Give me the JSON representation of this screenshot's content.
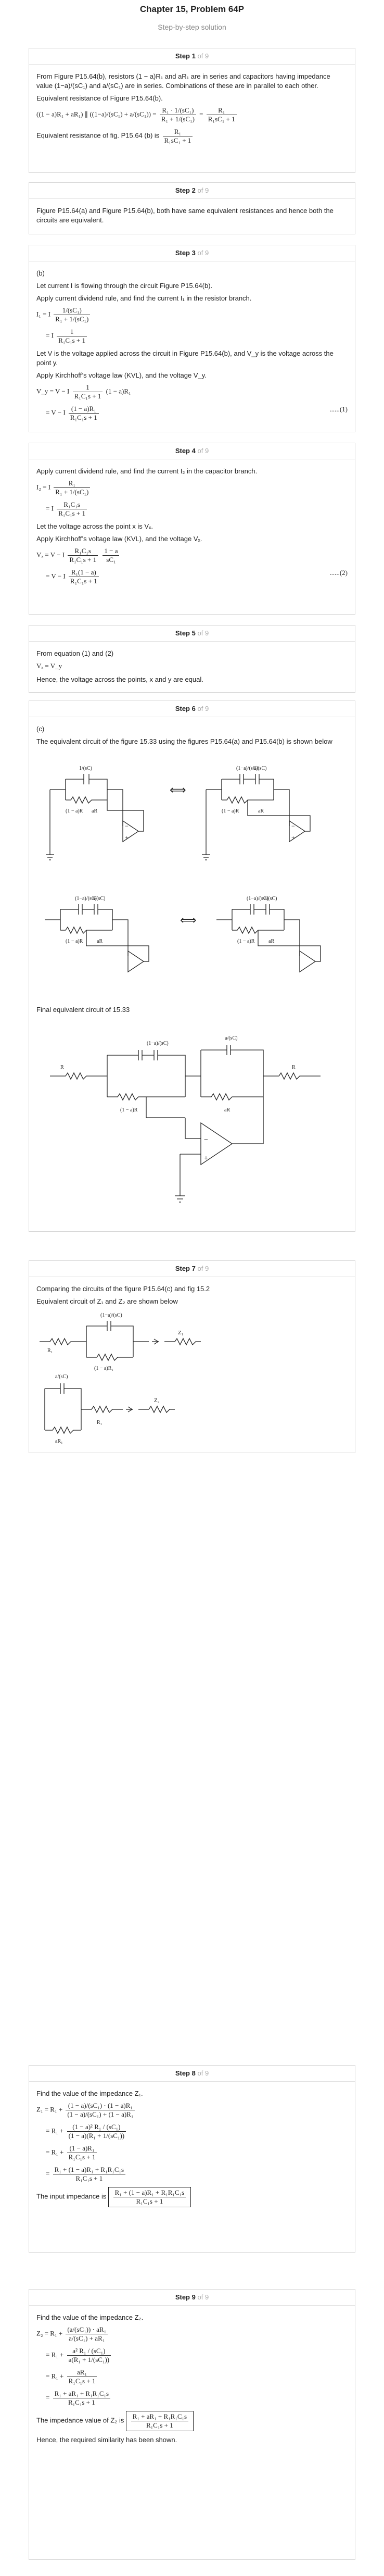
{
  "header": {
    "title": "Chapter 15, Problem 64P",
    "subtitle": "Step-by-step solution"
  },
  "step_word": "Step",
  "of_word": "of 9",
  "steps": [
    {
      "number": "1",
      "text1": "From Figure  P15.64(b),  resistors  (1 − a)R₁  and  aR₁  are in series and capacitors having impedance value  (1−a)/(sC₁)  and  a/(sC₁)  are in series. Combinations of these are in parallel to each other.",
      "text2": "Equivalent resistance of Figure  P15.64(b).",
      "eq1a": "((1 − a)R₁ + aR₁) ∥ ((1−a)/(sC₁) + a/(sC₁)) =",
      "eq1b": "R₁ · 1/(sC₁)",
      "eq1c": "R₁ + 1/(sC₁)",
      "eq1d": "R₁",
      "eq1e": "R₁sC₁ + 1",
      "text3": "Equivalent resistance of fig. P15.64 (b) is",
      "result_n": "R₁",
      "result_d": "R₁sC₁ + 1"
    },
    {
      "number": "2",
      "text1": "Figure  P15.64(a) and Figure  P15.64(b),  both have same equivalent resistances and hence both the circuits are equivalent."
    },
    {
      "number": "3",
      "part": "(b)",
      "text1": "Let current  I  is flowing through the circuit Figure  P15.64(b).",
      "text2": "Apply current dividend rule, and find the current  I₁  in the resistor branch.",
      "eq1": "I₁ = I",
      "eq1n": "1/(sC₁)",
      "eq1d": "R₁ + 1/(sC₁)",
      "eq2": "= I",
      "eq2n": "1",
      "eq2d": "R₁C₁s + 1",
      "text3": "Let  V  is the voltage applied across the circuit in Figure  P15.64(b),  and  V_y  is the voltage across the point  y.",
      "text4": "Apply Kirchhoff’s voltage law (KVL), and the voltage  V_y.",
      "eq3a": "V_y = V − I",
      "eq3n": "1",
      "eq3d": "R₁C₁s + 1",
      "eq3b": "(1 − a)R₁",
      "eq4a": "= V − I",
      "eq4n": "(1 − a)R₁",
      "eq4d": "R₁C₁s + 1",
      "eqnum": "......(1)"
    },
    {
      "number": "4",
      "text1": "Apply current dividend rule, and find the current  I₂  in the capacitor branch.",
      "eq1": "I₂ = I",
      "eq1n": "R₁",
      "eq1d": "R₁ + 1/(sC₁)",
      "eq2": "= I",
      "eq2n": "R₁C₁s",
      "eq2d": "R₁C₁s + 1",
      "text2": "Let the voltage across the point  x  is  Vₓ.",
      "text3": "Apply Kirchhoff’s voltage law (KVL), and the voltage  Vₓ.",
      "eq3a": "Vₓ = V − I",
      "eq3n": "R₁C₁s",
      "eq3d": "R₁C₁s + 1",
      "eq3bn": "1 − a",
      "eq3bd": "sC₁",
      "eq4a": "= V − I",
      "eq4n": "R₁(1 − a)",
      "eq4d": "R₁C₁s + 1",
      "eqnum": "......(2)"
    },
    {
      "number": "5",
      "text1": "From equation (1) and (2)",
      "eq1": "Vₓ = V_y",
      "text2": "Hence, the voltage across the points,  x  and  y  are equal."
    },
    {
      "number": "6",
      "part": "(c)",
      "text1": "The equivalent circuit of the figure  15.33  using the figures  P15.64(a)  and  P15.64(b)  is shown below",
      "text2": "Final equivalent circuit of  15.33",
      "labels": {
        "cap1": "1/(sC)",
        "res_1a": "(1 − a)R",
        "res_a": "aR",
        "cap_1a": "(1−a)/(sC)",
        "cap_a": "a/(sC)",
        "r_in": "R",
        "r_out": "R",
        "minus": "−",
        "plus": "+",
        "equiv": "⟺"
      }
    },
    {
      "number": "7",
      "text1": "Comparing the circuits of the figure  P15.64(c) and fig 15.2",
      "text2": "Equivalent circuit of  Z₁  and  Z₂  are shown below",
      "labels": {
        "z1": "Z₁",
        "z2": "Z₂",
        "r1": "R₁",
        "r_1a": "(1 − a)R₁",
        "cap_1a": "(1−a)/(sC)",
        "cap_a": "a/(sC)",
        "r_a": "aR₁",
        "r2": "R₁"
      }
    },
    {
      "number": "8",
      "text1": "Find the value of the impedance  Z₁.",
      "eq1": "Z₁ = R₁ +",
      "eq2": "= R₁ +",
      "eq3": "= R₁ +",
      "eq4": "= R₁ +",
      "eq4n": "(1 − a)R₁",
      "eq4d": "R₁C₁s + 1",
      "eq5n": "R₁ + (1 − a)R₁ + R₁R₁C₁s",
      "eq5d": "R₁C₁s + 1",
      "text2": "The input impedance is",
      "result_n": "R₁ + (1 − a)R₁ + R₁R₁C₁s",
      "result_d": "R₁C₁s + 1"
    },
    {
      "number": "9",
      "text1": "Find the value of the impedance  Z₂.",
      "eq1": "Z₂ = R₁ +",
      "eq4": "= R₁ +",
      "eq4n": "aR₁",
      "eq4d": "R₁C₁s + 1",
      "eq5n": "R₁ + aR₁ + R₁R₁C₁s",
      "eq5d": "R₁C₁s + 1",
      "text2": "The impedance value of  Z₂  is",
      "result_n": "R₁ + aR₁ + R₁R₁C₁s",
      "result_d": "R₁C₁s + 1",
      "text3": "Hence, the required similarity has been shown."
    }
  ]
}
